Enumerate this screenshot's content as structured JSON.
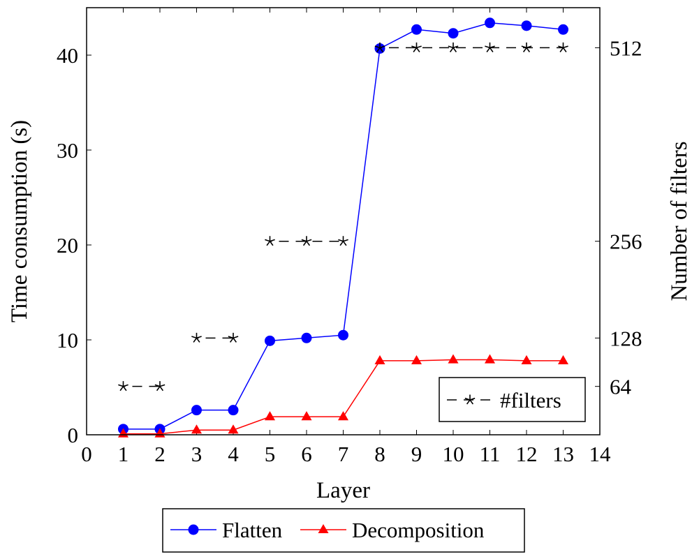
{
  "chart_data": {
    "type": "line",
    "x": [
      1,
      2,
      3,
      4,
      5,
      6,
      7,
      8,
      9,
      10,
      11,
      12,
      13
    ],
    "xlim": [
      0,
      14
    ],
    "ylim": [
      0,
      45
    ],
    "y2lim": [
      0,
      565
    ],
    "x_ticks": [
      0,
      1,
      2,
      3,
      4,
      5,
      6,
      7,
      8,
      9,
      10,
      11,
      12,
      13,
      14
    ],
    "y_ticks": [
      0,
      10,
      20,
      30,
      40
    ],
    "y2_ticks": [
      64,
      128,
      256,
      512
    ],
    "xlabel": "Layer",
    "ylabel": "Time consumption (s)",
    "y2label": "Number of filters",
    "series": [
      {
        "name": "Flatten",
        "axis": "left",
        "color": "#0000ff",
        "marker": "circle",
        "values": [
          0.6,
          0.6,
          2.6,
          2.6,
          9.9,
          10.2,
          10.5,
          40.7,
          42.7,
          42.3,
          43.4,
          43.1,
          42.7
        ]
      },
      {
        "name": "Decomposition",
        "axis": "left",
        "color": "#ff0000",
        "marker": "triangle",
        "values": [
          0.1,
          0.1,
          0.5,
          0.5,
          1.9,
          1.9,
          1.9,
          7.8,
          7.8,
          7.9,
          7.9,
          7.8,
          7.8
        ]
      },
      {
        "name": "#filters",
        "axis": "right",
        "color": "#000000",
        "marker": "star",
        "dashed": true,
        "segments": [
          [
            [
              1,
              64
            ],
            [
              2,
              64
            ]
          ],
          [
            [
              3,
              128
            ],
            [
              4,
              128
            ]
          ],
          [
            [
              5,
              256
            ],
            [
              6,
              256
            ],
            [
              7,
              256
            ]
          ],
          [
            [
              8,
              512
            ],
            [
              9,
              512
            ],
            [
              10,
              512
            ],
            [
              11,
              512
            ],
            [
              12,
              512
            ],
            [
              13,
              512
            ]
          ]
        ]
      }
    ],
    "legend_inner": {
      "position": "lower-right",
      "entries": [
        "#filters"
      ]
    },
    "legend_outer": {
      "position": "bottom-center",
      "entries": [
        "Flatten",
        "Decomposition"
      ]
    }
  }
}
